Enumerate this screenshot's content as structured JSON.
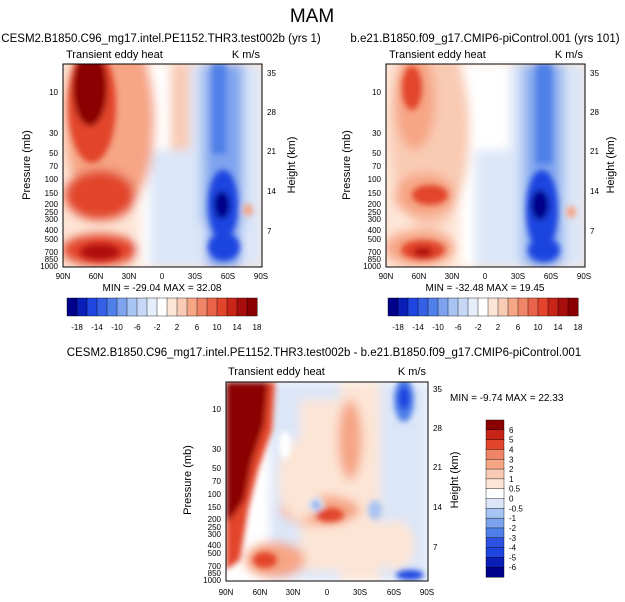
{
  "figure_title": "MAM",
  "colors": {
    "dark_red": "#8b0000",
    "red": "#e2442c",
    "salmon": "#f6a585",
    "light_peach": "#fde5d6",
    "white": "#ffffff",
    "pale_blue": "#dbe6f8",
    "light_blue": "#a8c4f2",
    "mid_blue": "#4f7fe8",
    "blue": "#1f45e0",
    "navy": "#00008b"
  },
  "chart_data": [
    {
      "type": "heatmap",
      "title": "CESM2.B1850.C96_mg17.intel.PE1152.THR3.test002b (yrs 1)",
      "subtitle_left": "Transient eddy heat",
      "units": "K m/s",
      "xlabel": "",
      "ylabel": "Pressure (mb)",
      "ylabel_right": "Height (km)",
      "x_ticks": [
        "90N",
        "60N",
        "30N",
        "0",
        "30S",
        "60S",
        "90S"
      ],
      "y_ticks": [
        "10",
        "30",
        "50",
        "70",
        "100",
        "150",
        "200",
        "250",
        "300",
        "400",
        "500",
        "700",
        "850",
        "1000"
      ],
      "y_ticks_right": [
        "35",
        "28",
        "21",
        "14",
        "7"
      ],
      "min_max": "MIN = -29.04   MAX = 32.08",
      "colorbar_labels": [
        "-18",
        "-14",
        "-10",
        "-6",
        "-2",
        "2",
        "6",
        "10",
        "14",
        "18"
      ]
    },
    {
      "type": "heatmap",
      "title": "b.e21.B1850.f09_g17.CMIP6-piControl.001 (yrs 101)",
      "subtitle_left": "Transient eddy heat",
      "units": "K m/s",
      "xlabel": "",
      "ylabel": "Pressure (mb)",
      "ylabel_right": "Height (km)",
      "x_ticks": [
        "90N",
        "60N",
        "30N",
        "0",
        "30S",
        "60S",
        "90S"
      ],
      "y_ticks": [
        "10",
        "30",
        "50",
        "70",
        "100",
        "150",
        "200",
        "250",
        "300",
        "400",
        "500",
        "700",
        "850",
        "1000"
      ],
      "y_ticks_right": [
        "35",
        "28",
        "21",
        "14",
        "7"
      ],
      "min_max": "MIN = -32.48   MAX = 19.45",
      "colorbar_labels": [
        "-18",
        "-14",
        "-10",
        "-6",
        "-2",
        "2",
        "6",
        "10",
        "14",
        "18"
      ]
    },
    {
      "type": "heatmap",
      "title": "CESM2.B1850.C96_mg17.intel.PE1152.THR3.test002b - b.e21.B1850.f09_g17.CMIP6-piControl.001",
      "subtitle_left": "Transient eddy heat",
      "units": "K m/s",
      "xlabel": "",
      "ylabel": "Pressure (mb)",
      "ylabel_right": "Height (km)",
      "x_ticks": [
        "90N",
        "60N",
        "30N",
        "0",
        "30S",
        "60S",
        "90S"
      ],
      "y_ticks": [
        "10",
        "30",
        "50",
        "70",
        "100",
        "150",
        "200",
        "250",
        "300",
        "400",
        "500",
        "700",
        "850",
        "1000"
      ],
      "y_ticks_right": [
        "35",
        "28",
        "21",
        "14",
        "7"
      ],
      "min_max": "MIN =  -9.74   MAX =  22.33",
      "colorbar_labels": [
        "6",
        "5",
        "4",
        "3",
        "2",
        "1",
        "0.5",
        "0",
        "-0.5",
        "-1",
        "-2",
        "-3",
        "-4",
        "-5",
        "-6"
      ]
    }
  ]
}
